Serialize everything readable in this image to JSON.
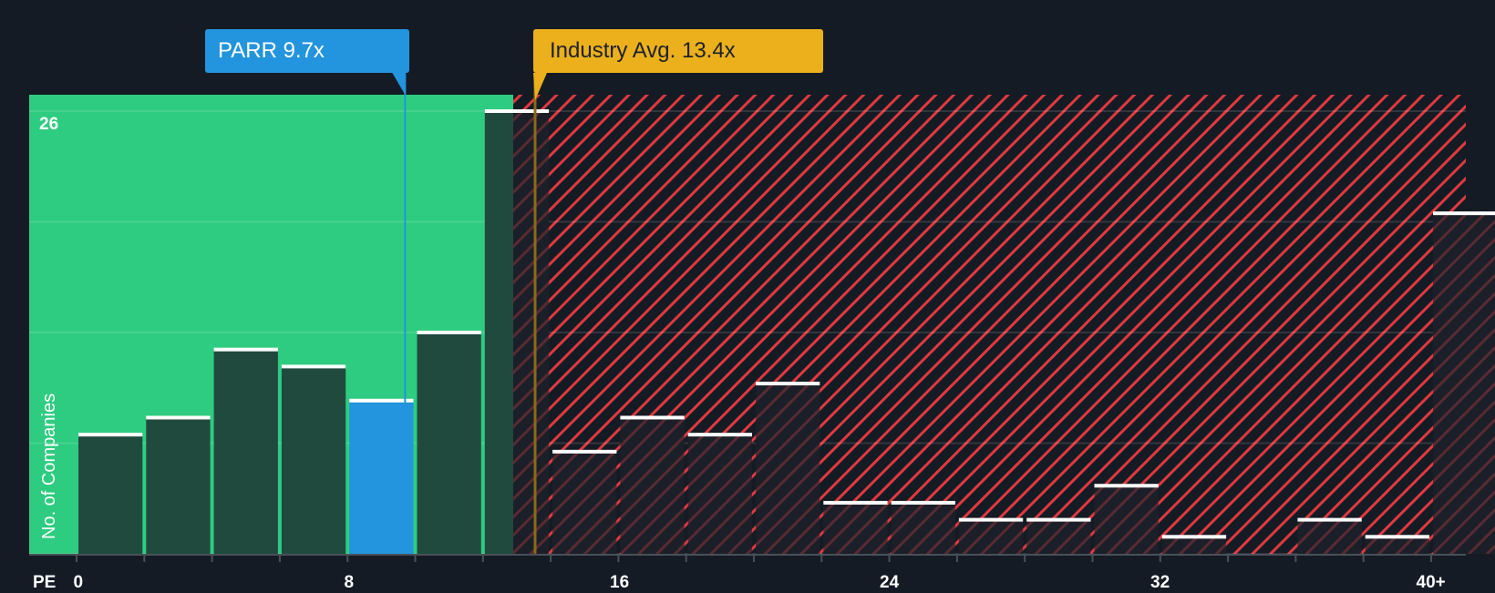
{
  "chart_data": {
    "type": "bar",
    "title": "",
    "xlabel": "PE",
    "ylabel": "No. of Companies",
    "x_tick_labels": [
      "0",
      "8",
      "16",
      "24",
      "32",
      "40+"
    ],
    "y_tick_labels": [
      "26"
    ],
    "ylim": [
      0,
      26
    ],
    "grid": true,
    "categories": [
      "0-2",
      "2-4",
      "4-6",
      "6-8",
      "8-10",
      "10-12",
      "12-14",
      "14-16",
      "16-18",
      "18-20",
      "20-22",
      "22-24",
      "24-26",
      "26-28",
      "28-30",
      "30-32",
      "32-34",
      "34-36",
      "36-38",
      "38-40",
      "40+"
    ],
    "values": [
      7,
      8,
      12,
      11,
      9,
      13,
      26,
      6,
      8,
      7,
      10,
      3,
      3,
      2,
      2,
      4,
      1,
      0,
      2,
      1,
      20
    ],
    "highlight_index": 4,
    "annotations": [
      {
        "label": "PARR 9.7x",
        "x": 9.7,
        "color": "#2394de"
      },
      {
        "label": "Industry Avg. 13.4x",
        "x": 13.4,
        "color": "#ebb01c"
      }
    ],
    "regions": [
      {
        "name": "undervalued",
        "from": 0,
        "to": 13.4,
        "color": "#2ecc80"
      },
      {
        "name": "overvalued",
        "from": 13.4,
        "to": 42,
        "color": "#e0393e",
        "pattern": "diagonal-hatch"
      }
    ]
  },
  "labels": {
    "company_callout": "PARR 9.7x",
    "industry_callout": "Industry Avg. 13.4x",
    "y_max": "26",
    "y_axis_title": "No. of Companies",
    "x_axis_title": "PE"
  },
  "colors": {
    "background": "#151b24",
    "green_zone": "#2ecc80",
    "bar_dark": "#214a3e",
    "bar_highlight": "#2394de",
    "hatch_red": "#e0393e",
    "industry_line": "#ebb01c",
    "bar_cap": "#ffffff"
  }
}
